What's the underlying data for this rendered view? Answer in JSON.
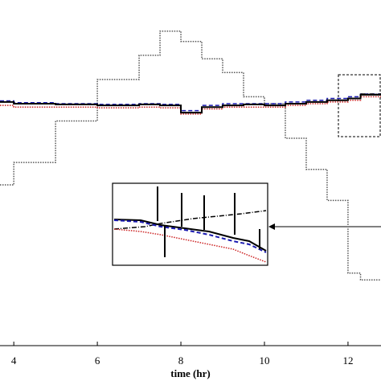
{
  "chart_data": {
    "type": "line",
    "xlabel": "time (hr)",
    "x": [
      3.67,
      4,
      5,
      6,
      7,
      7.5,
      8,
      8.5,
      9,
      9.5,
      10,
      10.5,
      11,
      11.5,
      12,
      12.3,
      12.79
    ],
    "series": [
      {
        "color": "#555555",
        "style": "dotted",
        "values": [
          46.5,
          53,
          65,
          77,
          84,
          91,
          88,
          83,
          79,
          72,
          70,
          60,
          51,
          42,
          21,
          19,
          19
        ]
      },
      {
        "color": "#cc2222",
        "style": "dotted",
        "values": [
          69.5,
          69,
          69,
          68.8,
          69,
          68.8,
          67,
          68.5,
          69,
          69,
          69,
          69.5,
          70,
          70.5,
          71,
          72,
          72.5
        ]
      },
      {
        "color": "#1a1ab0",
        "style": "dashed",
        "values": [
          70.8,
          70.3,
          70,
          69.8,
          70,
          69.8,
          68,
          69.5,
          70,
          70,
          70,
          70.5,
          71,
          71.5,
          72,
          72.8,
          72.5
        ]
      },
      {
        "color": "#000000",
        "style": "solid",
        "values": [
          70.5,
          70,
          69.8,
          69.5,
          69.8,
          69.5,
          67.4,
          69,
          69.5,
          69.8,
          69.5,
          70,
          70.5,
          71,
          71.5,
          72.6,
          72.5
        ]
      },
      {
        "color": "#000000",
        "style": "dashdot",
        "values": [
          null,
          null,
          null,
          null,
          null,
          null,
          null,
          null,
          null,
          null,
          null,
          null,
          null,
          null,
          null,
          72.8,
          73
        ]
      }
    ],
    "xlim": [
      3.67,
      12.79
    ],
    "xticks": [
      4,
      6,
      8,
      10,
      12
    ],
    "ylim": [
      0,
      100
    ]
  }
}
